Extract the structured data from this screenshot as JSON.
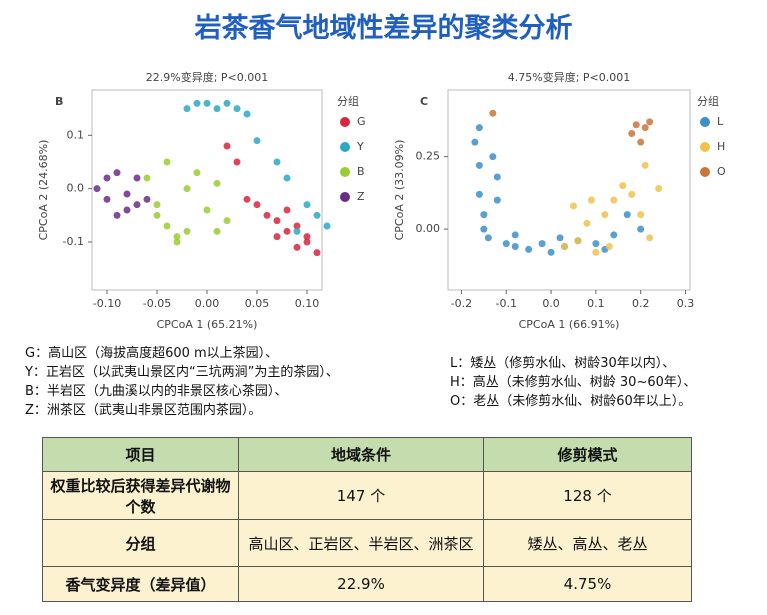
{
  "title": "岩茶香气地域性差异的聚类分析",
  "chart_data": [
    {
      "type": "scatter",
      "panel": "B",
      "title": "22.9%变异度; P<0.001",
      "xlabel": "CPCoA 1 (65.21%)",
      "ylabel": "CPCoA 2 (24.68%)",
      "legend_title": "分组",
      "xlim": [
        -0.115,
        0.115
      ],
      "ylim": [
        -0.19,
        0.185
      ],
      "xticks": [
        {
          "value": -0.1,
          "label": "-0.10"
        },
        -0.05,
        {
          "value": 0,
          "label": "0.00"
        },
        0.05,
        {
          "value": 0.1,
          "label": "0.10"
        }
      ],
      "yticks": [
        -0.1,
        {
          "value": 0,
          "label": "0.0"
        },
        0.1
      ],
      "series": [
        {
          "name": "G",
          "color": "#d7263d",
          "x": [
            0.06,
            0.07,
            0.08,
            0.09,
            0.1,
            0.11,
            0.1,
            0.08,
            0.05,
            0.04,
            0.03,
            0.02,
            0.09,
            0.07
          ],
          "y": [
            -0.05,
            -0.06,
            -0.08,
            -0.07,
            -0.1,
            -0.12,
            -0.09,
            -0.04,
            -0.03,
            -0.02,
            0.05,
            0.08,
            -0.11,
            -0.09
          ]
        },
        {
          "name": "Y",
          "color": "#2aa8c4",
          "x": [
            -0.02,
            -0.01,
            0.0,
            0.01,
            0.02,
            0.03,
            0.04,
            0.05,
            0.07,
            0.08,
            0.1,
            0.11,
            0.12,
            0.09
          ],
          "y": [
            0.15,
            0.16,
            0.16,
            0.15,
            0.16,
            0.15,
            0.14,
            0.09,
            0.05,
            0.02,
            -0.03,
            -0.05,
            -0.07,
            -0.08
          ]
        },
        {
          "name": "B",
          "color": "#9acd32",
          "x": [
            -0.06,
            -0.05,
            -0.04,
            -0.03,
            -0.02,
            -0.01,
            0.0,
            0.01,
            -0.04,
            -0.03,
            -0.05,
            0.02,
            0.01,
            -0.02
          ],
          "y": [
            0.02,
            -0.03,
            -0.07,
            -0.09,
            0.0,
            0.03,
            -0.04,
            -0.08,
            0.05,
            -0.1,
            -0.05,
            -0.06,
            0.01,
            -0.08
          ]
        },
        {
          "name": "Z",
          "color": "#6a2c8a",
          "x": [
            -0.11,
            -0.1,
            -0.1,
            -0.09,
            -0.08,
            -0.08,
            -0.07,
            -0.06,
            -0.09,
            -0.07
          ],
          "y": [
            0.0,
            0.02,
            -0.02,
            0.03,
            -0.01,
            -0.04,
            0.02,
            -0.02,
            -0.05,
            -0.03
          ]
        }
      ]
    },
    {
      "type": "scatter",
      "panel": "C",
      "title": "4.75%变异度; P<0.001",
      "xlabel": "CPCoA 1 (66.91%)",
      "ylabel": "CPCoA 2 (33.09%)",
      "legend_title": "分组",
      "xlim": [
        -0.23,
        0.31
      ],
      "ylim": [
        -0.21,
        0.48
      ],
      "xticks": [
        -0.2,
        -0.1,
        {
          "value": 0,
          "label": "0.0"
        },
        0.1,
        0.2,
        0.3
      ],
      "yticks": [
        {
          "value": 0,
          "label": "0.00"
        },
        0.25
      ],
      "series": [
        {
          "name": "L",
          "color": "#3b8fc9",
          "x": [
            -0.17,
            -0.16,
            -0.16,
            -0.15,
            -0.15,
            -0.14,
            -0.13,
            -0.12,
            -0.1,
            -0.08,
            -0.05,
            -0.02,
            0.0,
            0.03,
            0.06,
            0.1,
            0.14,
            0.17,
            0.2,
            -0.12,
            -0.16,
            -0.08,
            0.02,
            0.12
          ],
          "y": [
            0.3,
            0.22,
            0.12,
            0.05,
            0.0,
            -0.03,
            0.25,
            0.18,
            -0.05,
            -0.06,
            -0.07,
            -0.05,
            -0.08,
            -0.06,
            -0.04,
            -0.05,
            -0.02,
            0.05,
            0.0,
            0.1,
            0.35,
            -0.02,
            -0.03,
            -0.07
          ]
        },
        {
          "name": "H",
          "color": "#f0c24b",
          "x": [
            0.03,
            0.06,
            0.08,
            0.1,
            0.12,
            0.14,
            0.16,
            0.18,
            0.2,
            0.22,
            0.24,
            0.09,
            0.13,
            0.21,
            0.05
          ],
          "y": [
            -0.06,
            -0.04,
            0.02,
            -0.08,
            0.05,
            0.1,
            0.15,
            0.12,
            0.05,
            -0.03,
            0.14,
            0.1,
            -0.06,
            0.22,
            0.08
          ]
        },
        {
          "name": "O",
          "color": "#c9753a",
          "x": [
            -0.13,
            0.18,
            0.19,
            0.2,
            0.21,
            0.22
          ],
          "y": [
            0.4,
            0.33,
            0.36,
            0.3,
            0.35,
            0.37
          ]
        }
      ]
    }
  ],
  "notes_left": [
    "G：高山区（海拔高度超600 m以上茶园）、",
    "Y：正岩区（以武夷山景区内“三坑两涧”为主的茶园）、",
    "B：半岩区（九曲溪以内的非景区核心茶园）、",
    "Z：洲茶区（武夷山非景区范围内茶园）。"
  ],
  "notes_right": [
    "L：矮丛（修剪水仙、树龄30年以内）、",
    "H：高丛（未修剪水仙、树龄 30~60年）、",
    "O：老丛（未修剪水仙、树龄60年以上）。"
  ],
  "table": {
    "header": [
      "项目",
      "地域条件",
      "修剪模式"
    ],
    "rows": [
      [
        "权重比较后获得差异代谢物个数",
        "147 个",
        "128 个"
      ],
      [
        "分组",
        "高山区、正岩区、半岩区、洲茶区",
        "矮丛、高丛、老丛"
      ],
      [
        "香气变异度（差异值）",
        "22.9%",
        "4.75%"
      ]
    ]
  }
}
